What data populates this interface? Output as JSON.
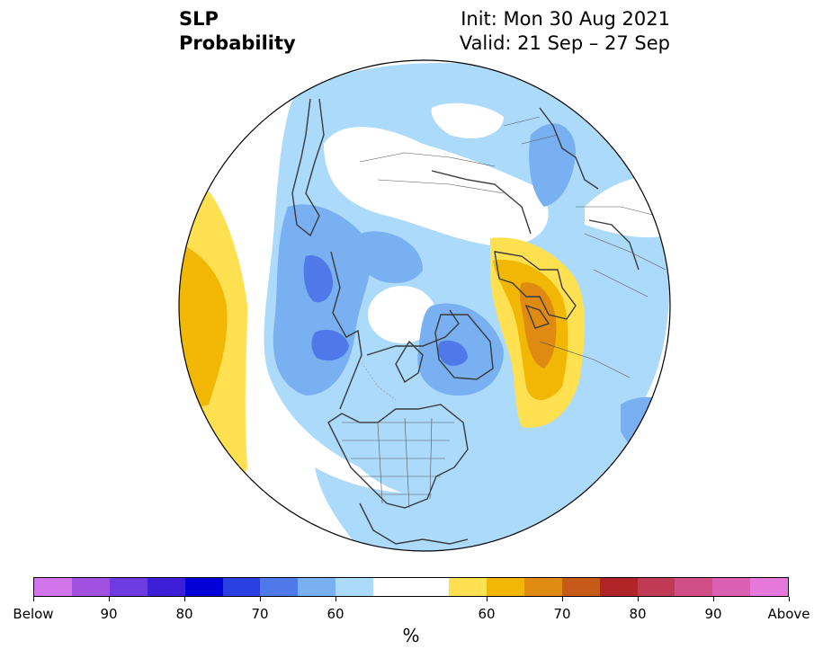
{
  "title": {
    "left_line1": "SLP",
    "left_line2": "Probability",
    "right_line1": "Init: Mon 30 Aug 2021",
    "right_line2": "Valid: 21 Sep – 27 Sep"
  },
  "colorbar": {
    "colors": [
      "#d375ea",
      "#a150e0",
      "#6d3be0",
      "#3d1fd8",
      "#0000d7",
      "#2a3fe0",
      "#4f78e8",
      "#78b0f2",
      "#acdafb",
      "#ffffff",
      "#ffffff",
      "#ffe050",
      "#f2b705",
      "#df8a10",
      "#c65a18",
      "#b02428",
      "#c03a55",
      "#cf4f86",
      "#db60b3",
      "#e678dc"
    ],
    "tick_labels": [
      "Below",
      "90",
      "80",
      "70",
      "60",
      "60",
      "70",
      "80",
      "90",
      "Above"
    ],
    "unit": "%"
  },
  "map_colors": {
    "light_blue": "#acdafb",
    "mid_blue": "#78b0f2",
    "dark_blue": "#4f78e8",
    "deep_blue": "#3d5fe0",
    "yellow": "#ffe050",
    "gold": "#f2b705",
    "orange": "#df8a10",
    "coast": "#3a3a3a"
  }
}
